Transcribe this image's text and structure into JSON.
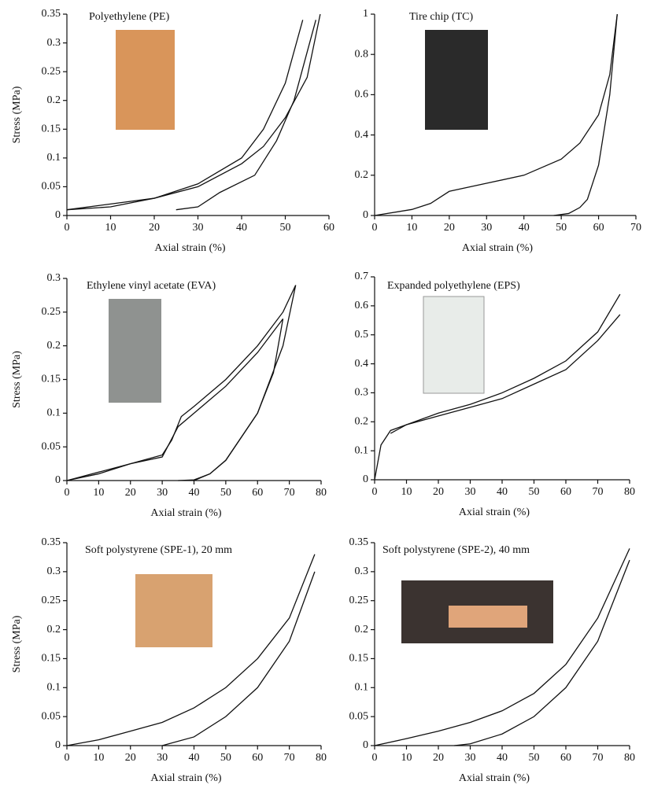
{
  "chart_data": [
    {
      "type": "line",
      "title": "Polyethylene (PE)",
      "xlabel": "Axial strain (%)",
      "ylabel": "Stress (MPa)",
      "color": "#111111",
      "xlim": [
        0,
        60
      ],
      "ylim": [
        0,
        0.35
      ],
      "xticks": [
        0,
        10,
        20,
        30,
        40,
        50,
        60
      ],
      "yticks": [
        0,
        0.05,
        0.1,
        0.15,
        0.2,
        0.25,
        0.3,
        0.35
      ],
      "series": [
        {
          "x": [
            0,
            10,
            20,
            30,
            40,
            45,
            50,
            54
          ],
          "values": [
            0.01,
            0.02,
            0.03,
            0.055,
            0.1,
            0.15,
            0.23,
            0.34
          ]
        },
        {
          "x": [
            57,
            52,
            48,
            43,
            35,
            30,
            25
          ],
          "values": [
            0.34,
            0.2,
            0.13,
            0.07,
            0.04,
            0.015,
            0.01
          ]
        },
        {
          "x": [
            0,
            10,
            20,
            30,
            40,
            45,
            50,
            55,
            58
          ],
          "values": [
            0.01,
            0.015,
            0.03,
            0.05,
            0.09,
            0.12,
            0.17,
            0.24,
            0.35
          ]
        }
      ]
    },
    {
      "type": "line",
      "title": "Tire chip (TC)",
      "xlabel": "Axial strain (%)",
      "color": "#111111",
      "xlim": [
        0,
        70
      ],
      "ylim": [
        0,
        1
      ],
      "xticks": [
        0,
        10,
        20,
        30,
        40,
        50,
        60,
        70
      ],
      "yticks": [
        0,
        0.2,
        0.4,
        0.6,
        0.8,
        1
      ],
      "series": [
        {
          "x": [
            0,
            10,
            15,
            20,
            30,
            40,
            50,
            55,
            60,
            63,
            65
          ],
          "values": [
            0,
            0.03,
            0.06,
            0.12,
            0.16,
            0.2,
            0.28,
            0.36,
            0.5,
            0.7,
            1
          ]
        },
        {
          "x": [
            65,
            63,
            60,
            57,
            55,
            52,
            48
          ],
          "values": [
            1,
            0.6,
            0.25,
            0.08,
            0.04,
            0.01,
            0
          ]
        }
      ]
    },
    {
      "type": "line",
      "title": "Ethylene vinyl acetate (EVA)",
      "xlabel": "Axial strain (%)",
      "ylabel": "Stress (MPa)",
      "color": "#111111",
      "xlim": [
        0,
        80
      ],
      "ylim": [
        0,
        0.3
      ],
      "xticks": [
        0,
        10,
        20,
        30,
        40,
        50,
        60,
        70,
        80
      ],
      "yticks": [
        0,
        0.05,
        0.1,
        0.15,
        0.2,
        0.25,
        0.3
      ],
      "series": [
        {
          "x": [
            0,
            10,
            20,
            30,
            33,
            36,
            40,
            50,
            60,
            68,
            72
          ],
          "values": [
            0,
            0.01,
            0.025,
            0.038,
            0.06,
            0.095,
            0.11,
            0.15,
            0.2,
            0.25,
            0.29
          ]
        },
        {
          "x": [
            72,
            68,
            60,
            50,
            45,
            40,
            35
          ],
          "values": [
            0.29,
            0.2,
            0.1,
            0.03,
            0.01,
            0.001,
            0
          ]
        },
        {
          "x": [
            0,
            20,
            30,
            35,
            40,
            50,
            60,
            68
          ],
          "values": [
            0,
            0.025,
            0.035,
            0.08,
            0.1,
            0.14,
            0.19,
            0.24
          ]
        },
        {
          "x": [
            68,
            65,
            60,
            50,
            45,
            40
          ],
          "values": [
            0.24,
            0.16,
            0.1,
            0.03,
            0.01,
            0
          ]
        }
      ]
    },
    {
      "type": "line",
      "title": "Expanded polyethylene (EPS)",
      "xlabel": "Axial strain (%)",
      "color": "#111111",
      "xlim": [
        0,
        80
      ],
      "ylim": [
        0,
        0.7
      ],
      "xticks": [
        0,
        10,
        20,
        30,
        40,
        50,
        60,
        70,
        80
      ],
      "yticks": [
        0,
        0.1,
        0.2,
        0.3,
        0.4,
        0.5,
        0.6,
        0.7
      ],
      "series": [
        {
          "x": [
            0,
            2,
            5,
            10,
            20,
            30,
            40,
            50,
            60,
            70,
            77
          ],
          "values": [
            0,
            0.12,
            0.17,
            0.19,
            0.23,
            0.26,
            0.3,
            0.35,
            0.41,
            0.51,
            0.64
          ]
        },
        {
          "x": [
            77,
            70,
            60,
            50,
            40,
            30,
            20,
            10,
            5
          ],
          "values": [
            0.57,
            0.48,
            0.38,
            0.33,
            0.28,
            0.25,
            0.22,
            0.19,
            0.16
          ]
        }
      ]
    },
    {
      "type": "line",
      "title": "Soft polystyrene (SPE-1), 20 mm",
      "xlabel": "Axial strain (%)",
      "ylabel": "Stress (MPa)",
      "color": "#111111",
      "xlim": [
        0,
        80
      ],
      "ylim": [
        0,
        0.35
      ],
      "xticks": [
        0,
        10,
        20,
        30,
        40,
        50,
        60,
        70,
        80
      ],
      "yticks": [
        0,
        0.05,
        0.1,
        0.15,
        0.2,
        0.25,
        0.3,
        0.35
      ],
      "series": [
        {
          "x": [
            0,
            10,
            20,
            30,
            40,
            50,
            60,
            70,
            78
          ],
          "values": [
            0,
            0.01,
            0.025,
            0.04,
            0.065,
            0.1,
            0.15,
            0.22,
            0.33
          ]
        },
        {
          "x": [
            78,
            70,
            60,
            50,
            40,
            30
          ],
          "values": [
            0.3,
            0.18,
            0.1,
            0.05,
            0.015,
            0
          ]
        }
      ]
    },
    {
      "type": "line",
      "title": "Soft polystyrene (SPE-2), 40 mm",
      "xlabel": "Axial strain (%)",
      "color": "#111111",
      "xlim": [
        0,
        80
      ],
      "ylim": [
        0,
        0.35
      ],
      "xticks": [
        0,
        10,
        20,
        30,
        40,
        50,
        60,
        70,
        80
      ],
      "yticks": [
        0,
        0.05,
        0.1,
        0.15,
        0.2,
        0.25,
        0.3,
        0.35
      ],
      "series": [
        {
          "x": [
            0,
            10,
            20,
            30,
            40,
            50,
            60,
            70,
            80
          ],
          "values": [
            0,
            0.012,
            0.025,
            0.04,
            0.06,
            0.09,
            0.14,
            0.22,
            0.34
          ]
        },
        {
          "x": [
            80,
            70,
            60,
            50,
            40,
            30,
            25
          ],
          "values": [
            0.32,
            0.18,
            0.1,
            0.05,
            0.02,
            0.003,
            0
          ]
        }
      ]
    }
  ]
}
